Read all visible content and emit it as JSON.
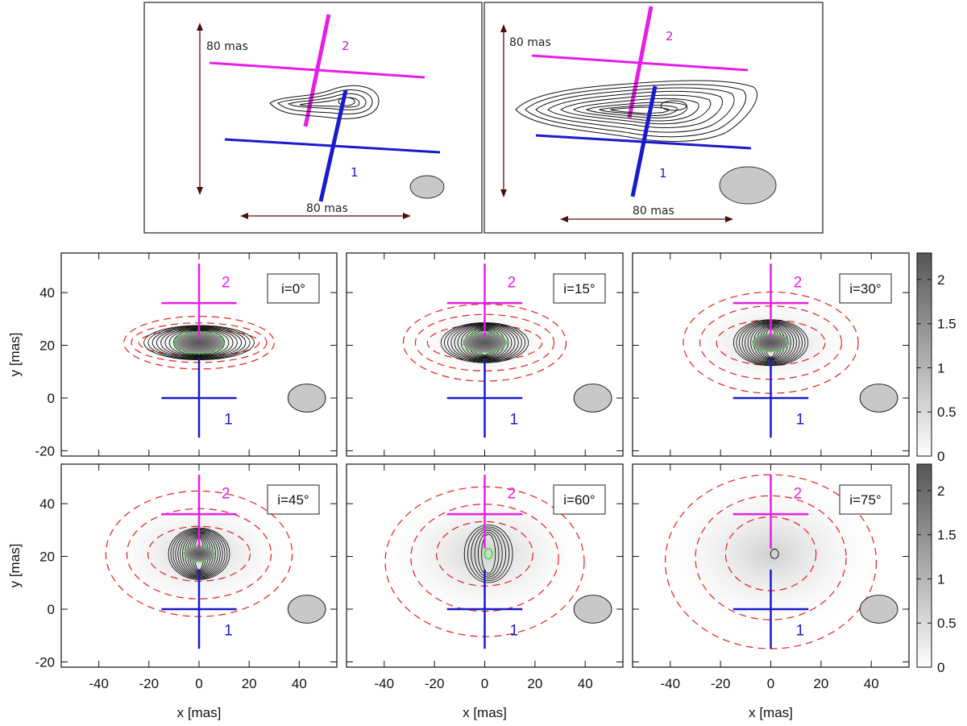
{
  "figure": {
    "top_left": {
      "scale_v": "80 mas",
      "scale_h": "80 mas",
      "label_1": "1",
      "label_2": "2"
    },
    "top_right": {
      "scale_v": "80 mas",
      "scale_h": "80 mas",
      "label_1": "1",
      "label_2": "2"
    }
  },
  "colors": {
    "cross_1": "#1a1acc",
    "cross_2": "#e61ee6",
    "contour": "#111111",
    "dashed": "#e02020",
    "core": "#33dd33"
  },
  "chart_data": [
    {
      "type": "heatmap",
      "panel": "i=0°",
      "incl_deg": 0,
      "xlim": [
        -55,
        55
      ],
      "ylim": [
        -22,
        55
      ],
      "xticks": [
        "-40",
        "-20",
        "0",
        "20",
        "40"
      ],
      "yticks": [
        "-20",
        "0",
        "20",
        "40"
      ],
      "xlabel": "",
      "ylabel": "y [mas]",
      "marker_1": "1",
      "marker_2": "2"
    },
    {
      "type": "heatmap",
      "panel": "i=15°",
      "incl_deg": 15,
      "xlim": [
        -55,
        55
      ],
      "ylim": [
        -22,
        55
      ],
      "xticks": [
        "-40",
        "-20",
        "0",
        "20",
        "40"
      ],
      "yticks": [
        "-20",
        "0",
        "20",
        "40"
      ],
      "xlabel": "",
      "ylabel": "",
      "marker_1": "1",
      "marker_2": "2"
    },
    {
      "type": "heatmap",
      "panel": "i=30°",
      "incl_deg": 30,
      "xlim": [
        -55,
        55
      ],
      "ylim": [
        -22,
        55
      ],
      "xticks": [
        "-40",
        "-20",
        "0",
        "20",
        "40"
      ],
      "yticks": [
        "-20",
        "0",
        "20",
        "40"
      ],
      "xlabel": "",
      "ylabel": "",
      "marker_1": "1",
      "marker_2": "2"
    },
    {
      "type": "heatmap",
      "panel": "i=45°",
      "incl_deg": 45,
      "xlim": [
        -55,
        55
      ],
      "ylim": [
        -22,
        55
      ],
      "xticks": [
        "-40",
        "-20",
        "0",
        "20",
        "40"
      ],
      "yticks": [
        "-20",
        "0",
        "20",
        "40"
      ],
      "xlabel": "x [mas]",
      "ylabel": "y [mas]",
      "marker_1": "1",
      "marker_2": "2"
    },
    {
      "type": "heatmap",
      "panel": "i=60°",
      "incl_deg": 60,
      "xlim": [
        -55,
        55
      ],
      "ylim": [
        -22,
        55
      ],
      "xticks": [
        "-40",
        "-20",
        "0",
        "20",
        "40"
      ],
      "yticks": [
        "-20",
        "0",
        "20",
        "40"
      ],
      "xlabel": "x [mas]",
      "ylabel": "",
      "marker_1": "1",
      "marker_2": "2"
    },
    {
      "type": "heatmap",
      "panel": "i=75°",
      "incl_deg": 75,
      "xlim": [
        -55,
        55
      ],
      "ylim": [
        -22,
        55
      ],
      "xticks": [
        "-40",
        "-20",
        "0",
        "20",
        "40"
      ],
      "yticks": [
        "-20",
        "0",
        "20",
        "40"
      ],
      "xlabel": "x [mas]",
      "ylabel": "",
      "marker_1": "1",
      "marker_2": "2"
    }
  ],
  "colorbar": {
    "range": [
      0,
      2.3
    ],
    "ticks": [
      "0",
      "0.5",
      "1",
      "1.5",
      "2"
    ],
    "tick_values": [
      0,
      0.5,
      1,
      1.5,
      2
    ]
  }
}
